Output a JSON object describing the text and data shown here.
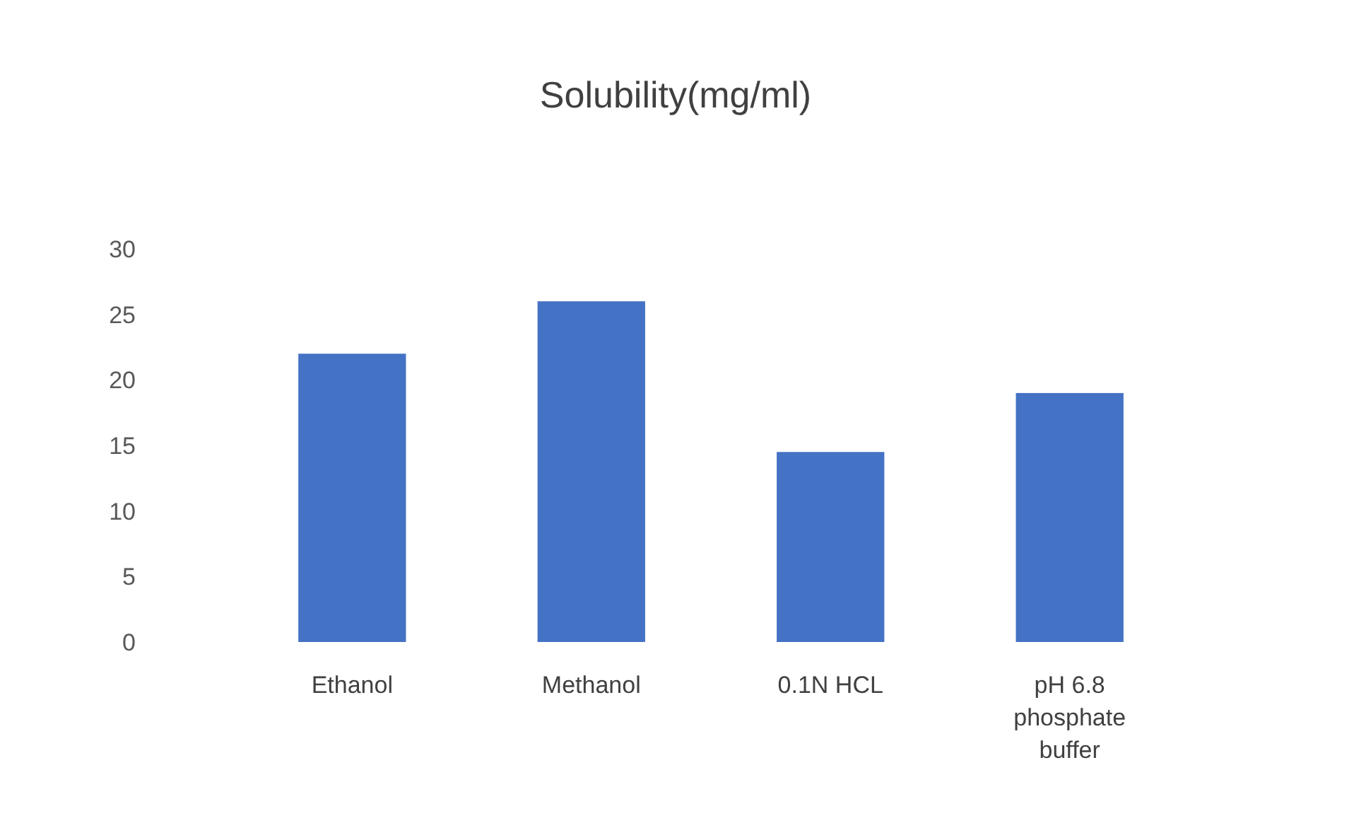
{
  "chart_data": {
    "type": "bar",
    "title": "Solubility(mg/ml)",
    "categories": [
      "Ethanol",
      "Methanol",
      "0.1N HCL",
      "pH 6.8 phosphate buffer"
    ],
    "values": [
      22,
      26,
      14.5,
      19
    ],
    "color": "#4472c4",
    "ylim": [
      0,
      30
    ],
    "yticks": [
      0,
      5,
      10,
      15,
      20,
      25,
      30
    ],
    "grid": false
  }
}
